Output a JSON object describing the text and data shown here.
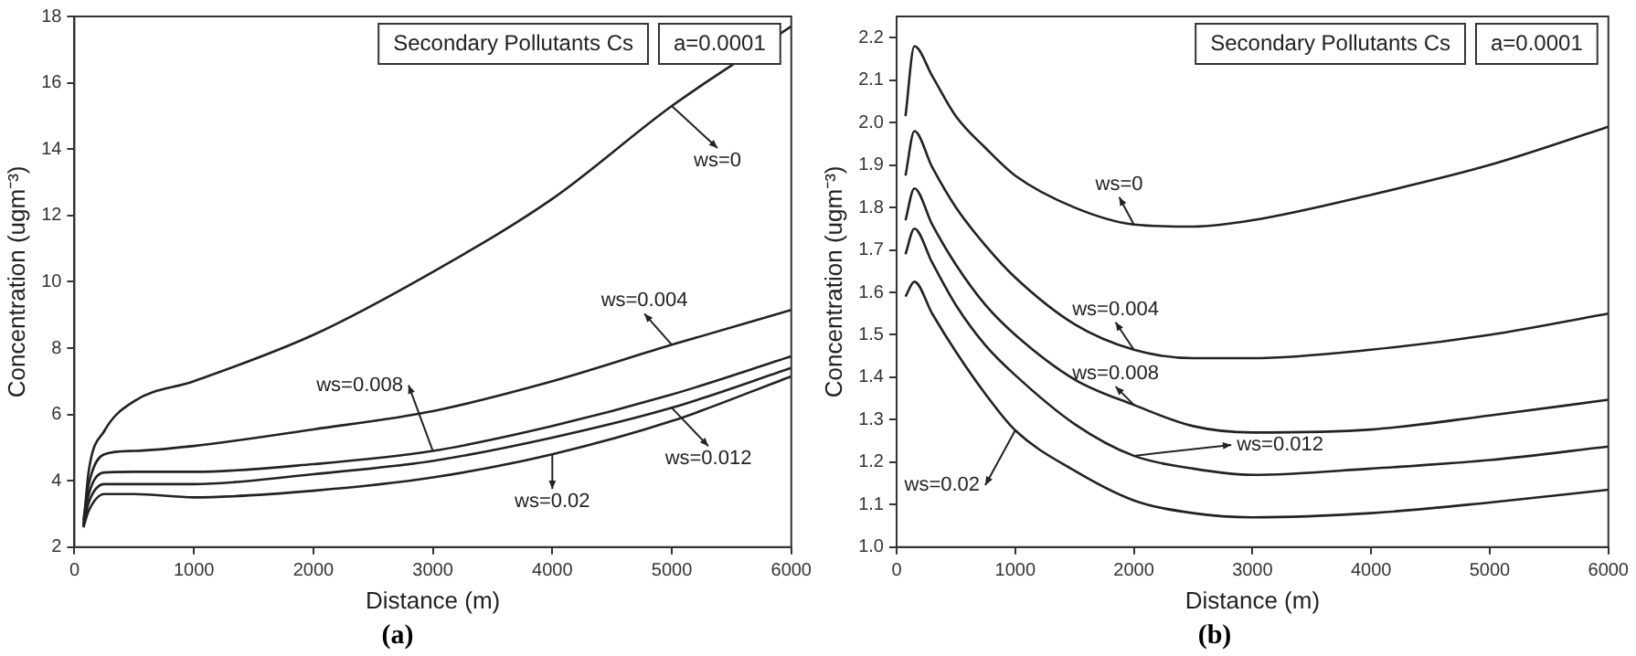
{
  "chart_data": [
    {
      "type": "line",
      "title": "(a)",
      "xlabel": "Distance (m)",
      "ylabel": "Concentration (ugm⁻³)",
      "xlim": [
        0,
        6000
      ],
      "xticks": [
        0,
        1000,
        2000,
        3000,
        4000,
        5000,
        6000
      ],
      "ylim": [
        2,
        18
      ],
      "yticks": [
        2,
        4,
        6,
        8,
        10,
        12,
        14,
        16,
        18
      ],
      "x": [
        75,
        120,
        250,
        500,
        1000,
        2000,
        3000,
        4000,
        5000,
        6000
      ],
      "series": [
        {
          "color": "#222222",
          "values": [
            2.6,
            4.3,
            5.5,
            6.4,
            7.0,
            8.4,
            10.3,
            12.5,
            15.3,
            17.7
          ]
        },
        {
          "color": "#222222",
          "values": [
            2.8,
            3.9,
            4.8,
            4.9,
            5.05,
            5.55,
            6.1,
            7.0,
            8.1,
            9.15
          ]
        },
        {
          "color": "#222222",
          "values": [
            2.7,
            3.6,
            4.25,
            4.27,
            4.27,
            4.5,
            4.9,
            5.65,
            6.6,
            7.75
          ]
        },
        {
          "color": "#222222",
          "values": [
            2.65,
            3.35,
            3.9,
            3.9,
            3.9,
            4.2,
            4.6,
            5.3,
            6.2,
            7.4
          ]
        },
        {
          "color": "#222222",
          "values": [
            2.6,
            3.1,
            3.6,
            3.6,
            3.5,
            3.7,
            4.1,
            4.8,
            5.8,
            7.15
          ]
        }
      ],
      "annotations": [
        "Secondary Pollutants Cs",
        "a=0.0001",
        {
          "text": "ws=0",
          "x": 5000,
          "y": 15.3
        },
        {
          "text": "ws=0.004",
          "x": 5000,
          "y": 8.1
        },
        {
          "text": "ws=0.008",
          "x": 3000,
          "y": 4.9
        },
        {
          "text": "ws=0.012",
          "x": 5000,
          "y": 6.2
        },
        {
          "text": "ws=0.02",
          "x": 4000,
          "y": 4.8
        }
      ],
      "grid": false,
      "legend": false,
      "marker": "none",
      "line_style": "solid"
    },
    {
      "type": "line",
      "title": "(b)",
      "xlabel": "Distance (m)",
      "ylabel": "Concentration (ugm⁻³)",
      "xlim": [
        0,
        6000
      ],
      "xticks": [
        0,
        1000,
        2000,
        3000,
        4000,
        5000,
        6000
      ],
      "ylim": [
        1.0,
        2.25
      ],
      "yticks": [
        {
          "value": 1.0,
          "label": "1.0"
        },
        1.1,
        1.2,
        1.3,
        1.4,
        1.5,
        1.6,
        1.7,
        1.8,
        1.9,
        {
          "value": 2.0,
          "label": "2.0"
        },
        2.1,
        2.2
      ],
      "x": [
        75,
        150,
        300,
        500,
        750,
        1000,
        1500,
        2000,
        2500,
        3000,
        4000,
        5000,
        6000
      ],
      "series": [
        {
          "color": "#222222",
          "values": [
            2.015,
            2.18,
            2.11,
            2.015,
            1.94,
            1.875,
            1.8,
            1.76,
            1.755,
            1.77,
            1.83,
            1.9,
            1.99
          ]
        },
        {
          "color": "#222222",
          "values": [
            1.875,
            1.98,
            1.895,
            1.8,
            1.71,
            1.635,
            1.525,
            1.465,
            1.445,
            1.445,
            1.465,
            1.5,
            1.55
          ]
        },
        {
          "color": "#222222",
          "values": [
            1.77,
            1.845,
            1.76,
            1.665,
            1.57,
            1.5,
            1.395,
            1.335,
            1.285,
            1.27,
            1.277,
            1.31,
            1.347
          ]
        },
        {
          "color": "#222222",
          "values": [
            1.69,
            1.75,
            1.67,
            1.57,
            1.475,
            1.405,
            1.29,
            1.215,
            1.185,
            1.17,
            1.185,
            1.205,
            1.237
          ]
        },
        {
          "color": "#222222",
          "values": [
            1.59,
            1.625,
            1.55,
            1.46,
            1.36,
            1.275,
            1.18,
            1.11,
            1.08,
            1.07,
            1.08,
            1.105,
            1.135
          ]
        }
      ],
      "annotations": [
        "Secondary Pollutants Cs",
        "a=0.0001",
        {
          "text": "ws=0",
          "x": 2000,
          "y": 1.76
        },
        {
          "text": "ws=0.004",
          "x": 2000,
          "y": 1.465
        },
        {
          "text": "ws=0.008",
          "x": 2000,
          "y": 1.335
        },
        {
          "text": "ws=0.012",
          "x": 2000,
          "y": 1.215
        },
        {
          "text": "ws=0.02",
          "x": 1000,
          "y": 1.275
        }
      ],
      "grid": false,
      "legend": false,
      "marker": "none",
      "line_style": "solid"
    }
  ]
}
